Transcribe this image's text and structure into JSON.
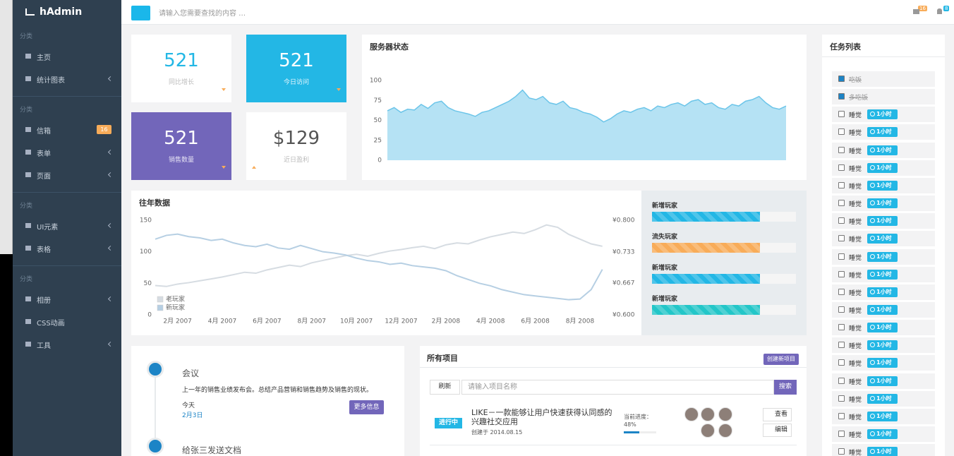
{
  "brand": "hAdmin",
  "search_placeholder": "请输入您需要查找的内容 …",
  "notifications": {
    "mail": 16,
    "bell": 8
  },
  "sidebar": [
    {
      "section": "分类",
      "items": [
        {
          "label": "主页"
        },
        {
          "label": "统计图表",
          "arrow": true
        }
      ]
    },
    {
      "section": "分类",
      "items": [
        {
          "label": "信箱",
          "badge": 16
        },
        {
          "label": "表单",
          "arrow": true
        },
        {
          "label": "页面",
          "arrow": true
        }
      ]
    },
    {
      "section": "分类",
      "items": [
        {
          "label": "UI元素",
          "arrow": true
        },
        {
          "label": "表格",
          "arrow": true
        }
      ]
    },
    {
      "section": "分类",
      "items": [
        {
          "label": "相册",
          "arrow": true
        },
        {
          "label": "CSS动画"
        },
        {
          "label": "工具",
          "arrow": true
        }
      ]
    }
  ],
  "stats": [
    {
      "value": 521,
      "label": "同比增长"
    },
    {
      "value": 521,
      "label": "今日访问"
    },
    {
      "value": 521,
      "label": "销售数量"
    },
    {
      "value": "$129",
      "label": "近日盈利"
    }
  ],
  "chart_data": [
    {
      "type": "area",
      "title": "服务器状态",
      "ylim": [
        0,
        100
      ],
      "yticks": [
        0,
        25,
        50,
        75,
        100
      ],
      "color": "#6cc5e9",
      "values": [
        62,
        66,
        60,
        64,
        63,
        70,
        65,
        72,
        74,
        66,
        62,
        60,
        58,
        55,
        60,
        62,
        66,
        70,
        74,
        80,
        88,
        78,
        76,
        80,
        72,
        70,
        74,
        66,
        64,
        60,
        58,
        54,
        48,
        52,
        58,
        62,
        60,
        64,
        66,
        62,
        68,
        66,
        70,
        72,
        68,
        74,
        76,
        70,
        72,
        66,
        64,
        70,
        68,
        74,
        76,
        80,
        72,
        66,
        64,
        68
      ]
    },
    {
      "type": "line",
      "title": "往年数据",
      "legend": "lower left",
      "x": [
        0,
        0.5,
        1,
        1.5,
        2,
        2.5,
        3,
        3.5,
        4,
        4.5,
        5,
        5.5,
        6,
        6.5,
        7,
        7.5,
        8,
        8.5,
        9,
        9.5,
        10,
        10.5,
        11,
        11.5,
        12,
        12.5,
        13,
        13.5,
        14,
        14.5,
        15,
        15.5,
        16,
        16.5,
        17,
        17.5,
        18,
        18.5,
        19,
        19.5,
        20
      ],
      "xlim": [
        0,
        20.2
      ],
      "xticks": [
        {
          "value": 1,
          "label": "2月 2007"
        },
        {
          "value": 3,
          "label": "4月 2007"
        },
        {
          "value": 5,
          "label": "6月 2007"
        },
        {
          "value": 7,
          "label": "8月 2007"
        },
        {
          "value": 9,
          "label": "10月 2007"
        },
        {
          "value": 11,
          "label": "12月 2007"
        },
        {
          "value": 13,
          "label": "2月 2008"
        },
        {
          "value": 15,
          "label": "4月 2008"
        },
        {
          "value": 17,
          "label": "6月 2008"
        },
        {
          "value": 19,
          "label": "8月 2008"
        }
      ],
      "ylim": [
        0,
        150
      ],
      "yticks": [
        0,
        50,
        100,
        150
      ],
      "y2lim": [
        0.6,
        0.8
      ],
      "y2ticks": [
        {
          "value": 0.6,
          "label": "¥0.600"
        },
        {
          "value": 0.667,
          "label": "¥0.667"
        },
        {
          "value": 0.733,
          "label": "¥0.733"
        },
        {
          "value": 0.8,
          "label": "¥0.800"
        }
      ],
      "series": [
        {
          "name": "老玩家",
          "color": "#d6dce2",
          "axis": "y2",
          "values": [
            0.662,
            0.66,
            0.665,
            0.668,
            0.672,
            0.676,
            0.68,
            0.685,
            0.69,
            0.688,
            0.695,
            0.7,
            0.705,
            0.702,
            0.71,
            0.715,
            0.72,
            0.725,
            0.728,
            0.724,
            0.73,
            0.735,
            0.738,
            0.742,
            0.745,
            0.74,
            0.748,
            0.752,
            0.75,
            0.758,
            0.765,
            0.77,
            0.775,
            0.772,
            0.78,
            0.79,
            0.785,
            0.77,
            0.76,
            0.75,
            0.745
          ]
        },
        {
          "name": "新玩家",
          "color": "#b6cfe3",
          "values": [
            120,
            126,
            128,
            124,
            122,
            118,
            120,
            114,
            110,
            108,
            112,
            106,
            104,
            110,
            105,
            100,
            98,
            95,
            90,
            86,
            84,
            80,
            82,
            78,
            76,
            74,
            70,
            62,
            56,
            50,
            46,
            40,
            36,
            32,
            30,
            28,
            26,
            24,
            25,
            40,
            72
          ]
        }
      ]
    }
  ],
  "progress": [
    {
      "label": "新增玩家",
      "value": 75,
      "color": "#23b7e5"
    },
    {
      "label": "流失玩家",
      "value": 75,
      "color": "#f8ac59"
    },
    {
      "label": "新增玩家",
      "value": 75,
      "color": "#23b7e5"
    },
    {
      "label": "新增玩家",
      "value": 75,
      "color": "#23c6c8"
    }
  ],
  "tasks": {
    "title": "任务列表",
    "items": [
      {
        "text": "吃饭",
        "done": true
      },
      {
        "text": "多吃饭",
        "done": true
      },
      {
        "text": "睡觉",
        "tag": "1小时"
      },
      {
        "text": "睡觉",
        "tag": "1小时"
      },
      {
        "text": "睡觉",
        "tag": "1小时"
      },
      {
        "text": "睡觉",
        "tag": "1小时"
      },
      {
        "text": "睡觉",
        "tag": "1小时"
      },
      {
        "text": "睡觉",
        "tag": "1小时"
      },
      {
        "text": "睡觉",
        "tag": "1小时"
      },
      {
        "text": "睡觉",
        "tag": "1小时"
      },
      {
        "text": "睡觉",
        "tag": "1小时"
      },
      {
        "text": "睡觉",
        "tag": "1小时"
      },
      {
        "text": "睡觉",
        "tag": "1小时"
      },
      {
        "text": "睡觉",
        "tag": "1小时"
      },
      {
        "text": "睡觉",
        "tag": "1小时"
      },
      {
        "text": "睡觉",
        "tag": "1小时"
      },
      {
        "text": "睡觉",
        "tag": "1小时"
      },
      {
        "text": "睡觉",
        "tag": "1小时"
      },
      {
        "text": "睡觉",
        "tag": "1小时"
      },
      {
        "text": "睡觉",
        "tag": "1小时"
      },
      {
        "text": "睡觉",
        "tag": "1小时"
      },
      {
        "text": "睡觉",
        "tag": "1小时"
      }
    ]
  },
  "timeline": [
    {
      "title": "会议",
      "text": "上一年的销售业绩发布会。总结产品营销和销售趋势及销售的现状。",
      "when": "今天",
      "date": "2月3日",
      "button": "更多信息"
    },
    {
      "title": "给张三发送文档"
    }
  ],
  "projects": {
    "title": "所有项目",
    "create": "创建新项目",
    "refresh": "刷新",
    "search_placeholder": "请输入项目名称",
    "search": "搜索",
    "rows": [
      {
        "status": "进行中",
        "name": "LIKE－一款能够让用户快速获得认同感的兴趣社交应用",
        "created": "创建于 2014.08.15",
        "progress_label": "当前进度：",
        "progress_text": "48%",
        "progress": 48,
        "view": "查看",
        "edit": "编辑"
      }
    ]
  }
}
